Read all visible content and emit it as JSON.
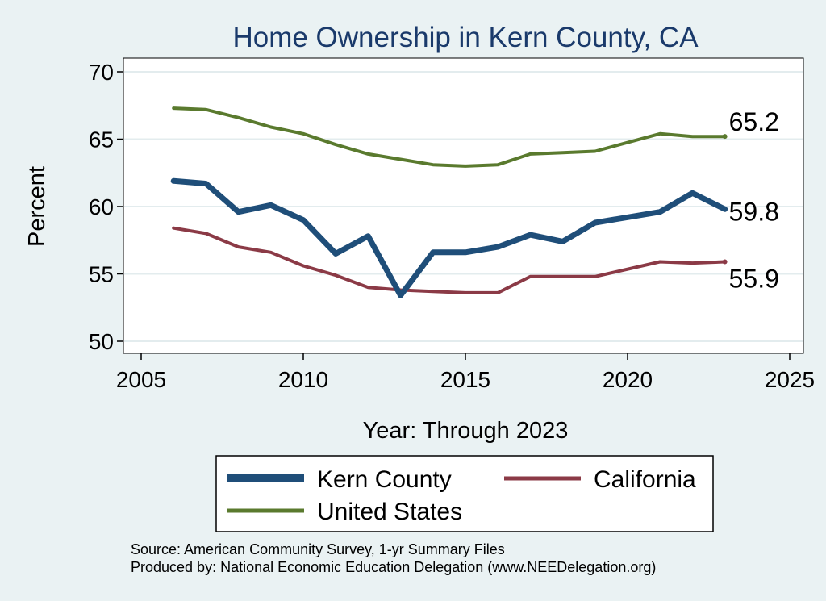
{
  "chart_data": {
    "type": "line",
    "title": "Home Ownership in Kern County, CA",
    "xlabel": "Year: Through 2023",
    "ylabel": "Percent",
    "xlim": [
      2005,
      2025
    ],
    "ylim": [
      50,
      70
    ],
    "xticks": [
      2005,
      2010,
      2015,
      2020,
      2025
    ],
    "yticks": [
      50,
      55,
      60,
      65,
      70
    ],
    "grid": true,
    "legend_position": "bottom",
    "x": [
      2006,
      2007,
      2008,
      2009,
      2010,
      2011,
      2012,
      2013,
      2014,
      2015,
      2016,
      2017,
      2018,
      2019,
      2021,
      2022,
      2023
    ],
    "series": [
      {
        "name": "Kern County",
        "color": "#1f4e79",
        "values": [
          61.9,
          61.7,
          59.6,
          60.1,
          59.0,
          56.5,
          57.8,
          53.4,
          56.6,
          56.6,
          57.0,
          57.9,
          57.4,
          58.8,
          59.6,
          61.0,
          59.8
        ],
        "end_label": "59.8"
      },
      {
        "name": "California",
        "color": "#8b3a46",
        "values": [
          58.4,
          58.0,
          57.0,
          56.6,
          55.6,
          54.9,
          54.0,
          53.8,
          53.7,
          53.6,
          53.6,
          54.8,
          54.8,
          54.8,
          55.9,
          55.8,
          55.9
        ],
        "end_label": "55.9"
      },
      {
        "name": "United States",
        "color": "#5a7a2e",
        "values": [
          67.3,
          67.2,
          66.6,
          65.9,
          65.4,
          64.6,
          63.9,
          63.5,
          63.1,
          63.0,
          63.1,
          63.9,
          64.0,
          64.1,
          65.4,
          65.2,
          65.2
        ],
        "end_label": "65.2"
      }
    ],
    "source_note": "Source: American Community Survey, 1-yr Summary Files",
    "producer_note": "Produced by: National Economic Education Delegation (www.NEEDelegation.org)"
  },
  "colors": {
    "background": "#eaf2f3",
    "plot_background": "#ffffff",
    "grid": "#e3ecee",
    "title": "#1a3a6b"
  }
}
